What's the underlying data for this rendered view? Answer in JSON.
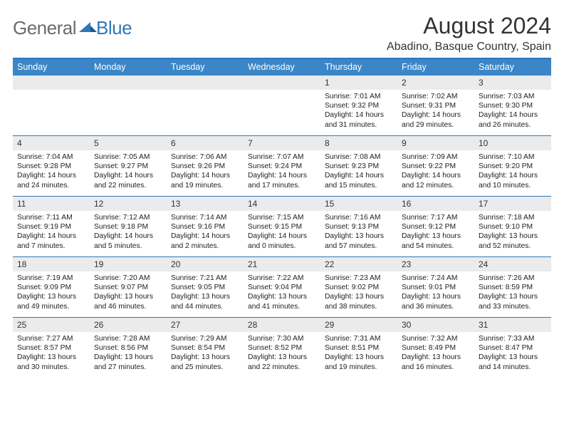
{
  "logo": {
    "text1": "General",
    "text2": "Blue"
  },
  "title": "August 2024",
  "location": "Abadino, Basque Country, Spain",
  "colors": {
    "header_bg": "#3a86c8",
    "divider": "#2f77b8",
    "daynum_bg": "#e9ebed",
    "logo_gray": "#6b6b6b",
    "logo_blue": "#2f77b8",
    "text": "#222222"
  },
  "weekdays": [
    "Sunday",
    "Monday",
    "Tuesday",
    "Wednesday",
    "Thursday",
    "Friday",
    "Saturday"
  ],
  "weeks": [
    {
      "nums": [
        "",
        "",
        "",
        "",
        "1",
        "2",
        "3"
      ],
      "cells": [
        null,
        null,
        null,
        null,
        {
          "sunrise": "Sunrise: 7:01 AM",
          "sunset": "Sunset: 9:32 PM",
          "day": "Daylight: 14 hours and 31 minutes."
        },
        {
          "sunrise": "Sunrise: 7:02 AM",
          "sunset": "Sunset: 9:31 PM",
          "day": "Daylight: 14 hours and 29 minutes."
        },
        {
          "sunrise": "Sunrise: 7:03 AM",
          "sunset": "Sunset: 9:30 PM",
          "day": "Daylight: 14 hours and 26 minutes."
        }
      ]
    },
    {
      "nums": [
        "4",
        "5",
        "6",
        "7",
        "8",
        "9",
        "10"
      ],
      "cells": [
        {
          "sunrise": "Sunrise: 7:04 AM",
          "sunset": "Sunset: 9:28 PM",
          "day": "Daylight: 14 hours and 24 minutes."
        },
        {
          "sunrise": "Sunrise: 7:05 AM",
          "sunset": "Sunset: 9:27 PM",
          "day": "Daylight: 14 hours and 22 minutes."
        },
        {
          "sunrise": "Sunrise: 7:06 AM",
          "sunset": "Sunset: 9:26 PM",
          "day": "Daylight: 14 hours and 19 minutes."
        },
        {
          "sunrise": "Sunrise: 7:07 AM",
          "sunset": "Sunset: 9:24 PM",
          "day": "Daylight: 14 hours and 17 minutes."
        },
        {
          "sunrise": "Sunrise: 7:08 AM",
          "sunset": "Sunset: 9:23 PM",
          "day": "Daylight: 14 hours and 15 minutes."
        },
        {
          "sunrise": "Sunrise: 7:09 AM",
          "sunset": "Sunset: 9:22 PM",
          "day": "Daylight: 14 hours and 12 minutes."
        },
        {
          "sunrise": "Sunrise: 7:10 AM",
          "sunset": "Sunset: 9:20 PM",
          "day": "Daylight: 14 hours and 10 minutes."
        }
      ]
    },
    {
      "nums": [
        "11",
        "12",
        "13",
        "14",
        "15",
        "16",
        "17"
      ],
      "cells": [
        {
          "sunrise": "Sunrise: 7:11 AM",
          "sunset": "Sunset: 9:19 PM",
          "day": "Daylight: 14 hours and 7 minutes."
        },
        {
          "sunrise": "Sunrise: 7:12 AM",
          "sunset": "Sunset: 9:18 PM",
          "day": "Daylight: 14 hours and 5 minutes."
        },
        {
          "sunrise": "Sunrise: 7:14 AM",
          "sunset": "Sunset: 9:16 PM",
          "day": "Daylight: 14 hours and 2 minutes."
        },
        {
          "sunrise": "Sunrise: 7:15 AM",
          "sunset": "Sunset: 9:15 PM",
          "day": "Daylight: 14 hours and 0 minutes."
        },
        {
          "sunrise": "Sunrise: 7:16 AM",
          "sunset": "Sunset: 9:13 PM",
          "day": "Daylight: 13 hours and 57 minutes."
        },
        {
          "sunrise": "Sunrise: 7:17 AM",
          "sunset": "Sunset: 9:12 PM",
          "day": "Daylight: 13 hours and 54 minutes."
        },
        {
          "sunrise": "Sunrise: 7:18 AM",
          "sunset": "Sunset: 9:10 PM",
          "day": "Daylight: 13 hours and 52 minutes."
        }
      ]
    },
    {
      "nums": [
        "18",
        "19",
        "20",
        "21",
        "22",
        "23",
        "24"
      ],
      "cells": [
        {
          "sunrise": "Sunrise: 7:19 AM",
          "sunset": "Sunset: 9:09 PM",
          "day": "Daylight: 13 hours and 49 minutes."
        },
        {
          "sunrise": "Sunrise: 7:20 AM",
          "sunset": "Sunset: 9:07 PM",
          "day": "Daylight: 13 hours and 46 minutes."
        },
        {
          "sunrise": "Sunrise: 7:21 AM",
          "sunset": "Sunset: 9:05 PM",
          "day": "Daylight: 13 hours and 44 minutes."
        },
        {
          "sunrise": "Sunrise: 7:22 AM",
          "sunset": "Sunset: 9:04 PM",
          "day": "Daylight: 13 hours and 41 minutes."
        },
        {
          "sunrise": "Sunrise: 7:23 AM",
          "sunset": "Sunset: 9:02 PM",
          "day": "Daylight: 13 hours and 38 minutes."
        },
        {
          "sunrise": "Sunrise: 7:24 AM",
          "sunset": "Sunset: 9:01 PM",
          "day": "Daylight: 13 hours and 36 minutes."
        },
        {
          "sunrise": "Sunrise: 7:26 AM",
          "sunset": "Sunset: 8:59 PM",
          "day": "Daylight: 13 hours and 33 minutes."
        }
      ]
    },
    {
      "nums": [
        "25",
        "26",
        "27",
        "28",
        "29",
        "30",
        "31"
      ],
      "cells": [
        {
          "sunrise": "Sunrise: 7:27 AM",
          "sunset": "Sunset: 8:57 PM",
          "day": "Daylight: 13 hours and 30 minutes."
        },
        {
          "sunrise": "Sunrise: 7:28 AM",
          "sunset": "Sunset: 8:56 PM",
          "day": "Daylight: 13 hours and 27 minutes."
        },
        {
          "sunrise": "Sunrise: 7:29 AM",
          "sunset": "Sunset: 8:54 PM",
          "day": "Daylight: 13 hours and 25 minutes."
        },
        {
          "sunrise": "Sunrise: 7:30 AM",
          "sunset": "Sunset: 8:52 PM",
          "day": "Daylight: 13 hours and 22 minutes."
        },
        {
          "sunrise": "Sunrise: 7:31 AM",
          "sunset": "Sunset: 8:51 PM",
          "day": "Daylight: 13 hours and 19 minutes."
        },
        {
          "sunrise": "Sunrise: 7:32 AM",
          "sunset": "Sunset: 8:49 PM",
          "day": "Daylight: 13 hours and 16 minutes."
        },
        {
          "sunrise": "Sunrise: 7:33 AM",
          "sunset": "Sunset: 8:47 PM",
          "day": "Daylight: 13 hours and 14 minutes."
        }
      ]
    }
  ]
}
